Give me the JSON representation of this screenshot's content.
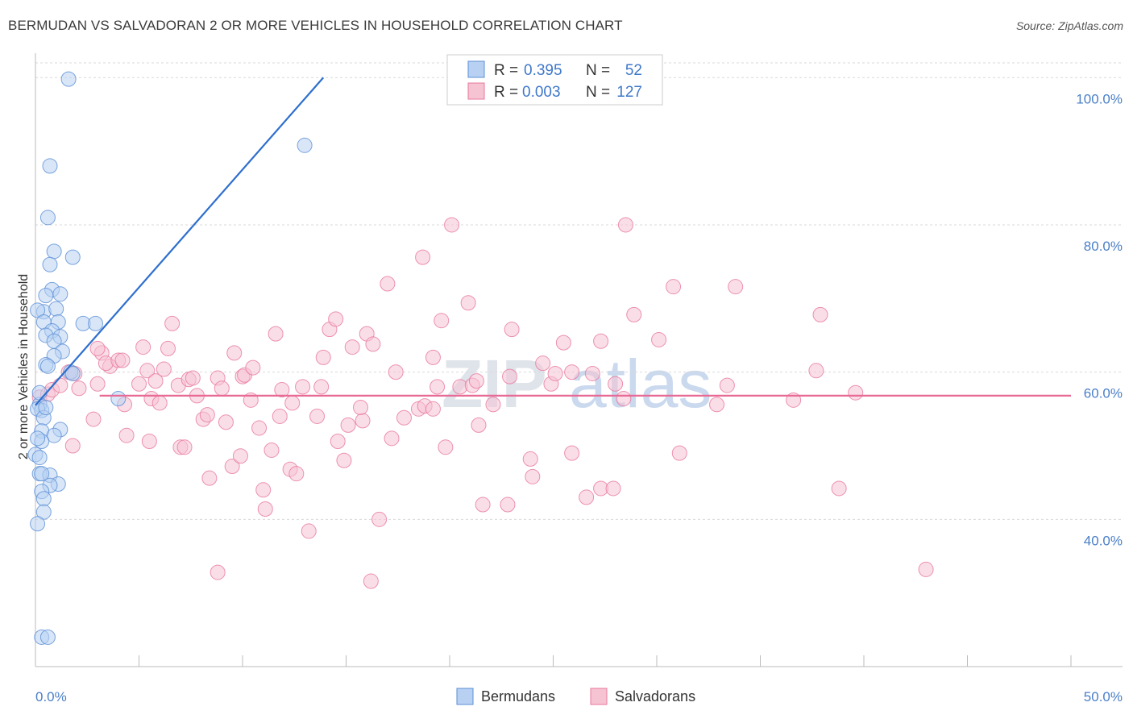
{
  "title": "BERMUDAN VS SALVADORAN 2 OR MORE VEHICLES IN HOUSEHOLD CORRELATION CHART",
  "source": "Source: ZipAtlas.com",
  "watermark": {
    "zip": "ZIP",
    "atlas": "atlas"
  },
  "colors": {
    "blue": "#5b8fd6",
    "blue_fill": "#b8d1f2",
    "pink": "#e8789e",
    "pink_fill": "#f6c3d3",
    "blue_line": "#2e6fce",
    "pink_line": "#e86a95",
    "accent_text": "#3f78c9"
  },
  "legend": {
    "rows": [
      {
        "r_label": "R =",
        "r_value": "0.395",
        "n_label": "N =",
        "n_value": "52"
      },
      {
        "r_label": "R =",
        "r_value": "0.003",
        "n_label": "N =",
        "n_value": "127"
      }
    ]
  },
  "bottom_legend": {
    "items": [
      "Bermudans",
      "Salvadorans"
    ]
  },
  "chart_data": {
    "type": "scatter",
    "title": "BERMUDAN VS SALVADORAN 2 OR MORE VEHICLES IN HOUSEHOLD CORRELATION CHART",
    "xlabel": "",
    "ylabel": "2 or more Vehicles in Household",
    "xlim": [
      0,
      50
    ],
    "ylim": [
      20,
      102
    ],
    "x_tick_labels": [
      "0.0%",
      "50.0%"
    ],
    "y_ticks": [
      40,
      60,
      80,
      100
    ],
    "y_tick_labels": [
      "40.0%",
      "60.0%",
      "80.0%",
      "100.0%"
    ],
    "series": [
      {
        "name": "Bermudans",
        "r": 0.395,
        "n": 52,
        "trend": {
          "x1": 0.0,
          "y1": 55.5,
          "x2": 13.9,
          "y2": 100.0
        },
        "points": [
          [
            1.6,
            99.8
          ],
          [
            13.0,
            90.8
          ],
          [
            0.7,
            88.0
          ],
          [
            0.6,
            81.0
          ],
          [
            0.9,
            76.4
          ],
          [
            1.8,
            75.6
          ],
          [
            0.7,
            74.6
          ],
          [
            0.8,
            71.2
          ],
          [
            1.2,
            70.6
          ],
          [
            0.5,
            70.4
          ],
          [
            0.4,
            68.2
          ],
          [
            0.1,
            68.4
          ],
          [
            1.0,
            68.6
          ],
          [
            0.4,
            66.8
          ],
          [
            1.1,
            66.8
          ],
          [
            2.3,
            66.6
          ],
          [
            2.9,
            66.6
          ],
          [
            0.8,
            65.6
          ],
          [
            0.5,
            65.0
          ],
          [
            1.2,
            64.8
          ],
          [
            0.9,
            64.2
          ],
          [
            1.3,
            62.8
          ],
          [
            0.9,
            62.2
          ],
          [
            0.5,
            61.0
          ],
          [
            0.6,
            60.8
          ],
          [
            1.7,
            60.0
          ],
          [
            1.8,
            59.8
          ],
          [
            4.0,
            56.4
          ],
          [
            0.2,
            55.6
          ],
          [
            0.3,
            54.8
          ],
          [
            0.1,
            55.0
          ],
          [
            0.4,
            53.8
          ],
          [
            1.2,
            52.2
          ],
          [
            0.3,
            52.0
          ],
          [
            0.9,
            51.4
          ],
          [
            0.3,
            50.6
          ],
          [
            0.0,
            48.8
          ],
          [
            0.2,
            46.2
          ],
          [
            0.7,
            46.0
          ],
          [
            0.3,
            46.2
          ],
          [
            1.1,
            44.8
          ],
          [
            0.7,
            44.6
          ],
          [
            0.3,
            43.8
          ],
          [
            0.4,
            42.8
          ],
          [
            0.4,
            41.0
          ],
          [
            0.1,
            39.4
          ],
          [
            0.3,
            24.0
          ],
          [
            0.6,
            24.0
          ],
          [
            0.2,
            48.4
          ],
          [
            0.1,
            51.0
          ],
          [
            0.5,
            55.2
          ],
          [
            0.2,
            57.2
          ]
        ]
      },
      {
        "name": "Salvadorans",
        "r": 0.003,
        "n": 127,
        "trend": {
          "x1": 3.1,
          "y1": 56.8,
          "x2": 50.0,
          "y2": 56.8
        },
        "points": [
          [
            0.2,
            56.6
          ],
          [
            0.6,
            57.0
          ],
          [
            0.8,
            57.6
          ],
          [
            1.2,
            58.2
          ],
          [
            1.6,
            60.0
          ],
          [
            1.9,
            59.8
          ],
          [
            2.1,
            57.8
          ],
          [
            2.8,
            53.6
          ],
          [
            1.8,
            50.0
          ],
          [
            3.2,
            62.6
          ],
          [
            3.0,
            63.2
          ],
          [
            3.6,
            60.8
          ],
          [
            3.4,
            61.2
          ],
          [
            4.0,
            61.6
          ],
          [
            4.2,
            61.6
          ],
          [
            3.0,
            58.4
          ],
          [
            4.3,
            55.6
          ],
          [
            4.4,
            51.4
          ],
          [
            5.0,
            58.4
          ],
          [
            5.2,
            63.4
          ],
          [
            5.4,
            60.2
          ],
          [
            5.5,
            50.6
          ],
          [
            5.6,
            56.4
          ],
          [
            5.8,
            58.8
          ],
          [
            6.0,
            55.8
          ],
          [
            6.2,
            60.4
          ],
          [
            6.4,
            63.2
          ],
          [
            6.6,
            66.6
          ],
          [
            6.9,
            58.2
          ],
          [
            7.0,
            49.8
          ],
          [
            7.2,
            49.8
          ],
          [
            7.4,
            59.0
          ],
          [
            7.6,
            59.2
          ],
          [
            7.8,
            56.8
          ],
          [
            8.1,
            53.6
          ],
          [
            8.3,
            54.2
          ],
          [
            8.4,
            45.6
          ],
          [
            8.8,
            59.2
          ],
          [
            8.8,
            32.8
          ],
          [
            9.0,
            57.8
          ],
          [
            9.2,
            53.2
          ],
          [
            9.5,
            47.2
          ],
          [
            9.6,
            62.6
          ],
          [
            10.0,
            59.4
          ],
          [
            10.1,
            59.6
          ],
          [
            10.5,
            60.6
          ],
          [
            10.4,
            56.2
          ],
          [
            10.8,
            52.4
          ],
          [
            11.0,
            44.0
          ],
          [
            11.1,
            41.4
          ],
          [
            11.4,
            49.4
          ],
          [
            11.6,
            65.2
          ],
          [
            11.8,
            54.0
          ],
          [
            11.9,
            57.6
          ],
          [
            12.4,
            55.8
          ],
          [
            12.3,
            46.8
          ],
          [
            12.6,
            46.2
          ],
          [
            12.9,
            58.0
          ],
          [
            13.2,
            38.4
          ],
          [
            13.6,
            54.0
          ],
          [
            13.8,
            58.0
          ],
          [
            13.9,
            62.0
          ],
          [
            14.2,
            65.8
          ],
          [
            14.5,
            67.2
          ],
          [
            14.6,
            50.6
          ],
          [
            14.9,
            48.0
          ],
          [
            15.1,
            52.8
          ],
          [
            15.3,
            63.4
          ],
          [
            15.8,
            53.4
          ],
          [
            16.0,
            65.2
          ],
          [
            16.3,
            63.8
          ],
          [
            16.2,
            31.6
          ],
          [
            16.6,
            40.0
          ],
          [
            17.0,
            72.0
          ],
          [
            17.2,
            51.0
          ],
          [
            17.4,
            60.0
          ],
          [
            17.8,
            53.8
          ],
          [
            18.5,
            55.0
          ],
          [
            18.7,
            75.6
          ],
          [
            18.8,
            55.4
          ],
          [
            19.2,
            62.0
          ],
          [
            19.6,
            67.0
          ],
          [
            19.2,
            55.0
          ],
          [
            19.4,
            58.0
          ],
          [
            19.8,
            49.8
          ],
          [
            20.1,
            80.0
          ],
          [
            20.5,
            58.0
          ],
          [
            20.9,
            69.4
          ],
          [
            21.1,
            58.2
          ],
          [
            21.4,
            52.8
          ],
          [
            21.6,
            42.0
          ],
          [
            22.1,
            55.6
          ],
          [
            22.8,
            42.0
          ],
          [
            22.9,
            59.4
          ],
          [
            23.0,
            65.8
          ],
          [
            23.9,
            48.2
          ],
          [
            24.0,
            45.8
          ],
          [
            24.5,
            61.2
          ],
          [
            24.9,
            58.4
          ],
          [
            25.1,
            59.8
          ],
          [
            25.5,
            64.0
          ],
          [
            25.9,
            60.0
          ],
          [
            25.9,
            49.0
          ],
          [
            26.6,
            43.0
          ],
          [
            26.9,
            59.8
          ],
          [
            27.3,
            64.2
          ],
          [
            27.3,
            44.2
          ],
          [
            27.9,
            44.2
          ],
          [
            28.0,
            58.4
          ],
          [
            28.4,
            56.4
          ],
          [
            28.5,
            80.0
          ],
          [
            28.9,
            67.8
          ],
          [
            30.1,
            64.4
          ],
          [
            30.8,
            71.6
          ],
          [
            31.1,
            49.0
          ],
          [
            32.9,
            55.6
          ],
          [
            33.4,
            58.2
          ],
          [
            33.8,
            71.6
          ],
          [
            36.6,
            56.2
          ],
          [
            37.7,
            60.2
          ],
          [
            37.9,
            67.8
          ],
          [
            38.8,
            44.2
          ],
          [
            39.6,
            57.2
          ],
          [
            43.0,
            33.2
          ],
          [
            21.3,
            58.8
          ],
          [
            9.9,
            48.6
          ],
          [
            15.7,
            55.2
          ]
        ]
      }
    ]
  }
}
